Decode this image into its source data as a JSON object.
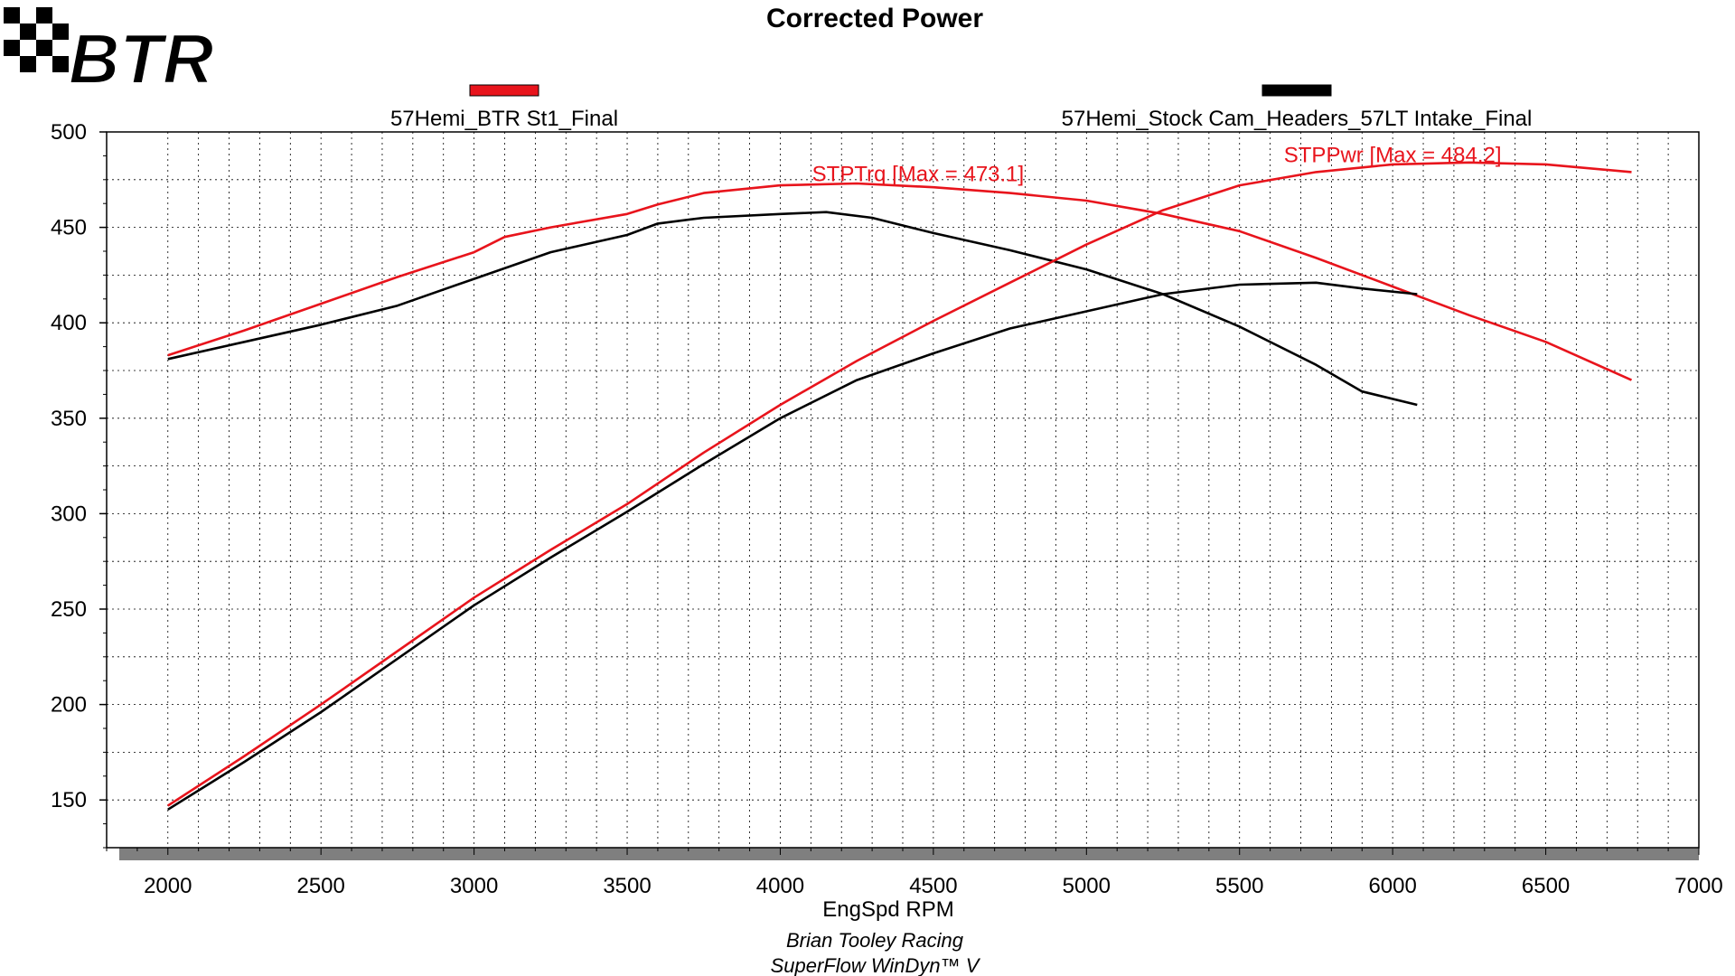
{
  "logo_text": "BTR",
  "colors": {
    "series_a": "#e8141c",
    "series_b": "#000000",
    "grid": "#000000",
    "shadow": "#7f7f7f"
  },
  "chart_data": {
    "type": "line",
    "title": "Corrected Power",
    "xlabel": "EngSpd RPM",
    "ylabel": "",
    "xlim": [
      1800,
      7000
    ],
    "ylim": [
      125,
      500
    ],
    "x_ticks": [
      2000,
      2500,
      3000,
      3500,
      4000,
      4500,
      5000,
      5500,
      6000,
      6500,
      7000
    ],
    "y_ticks": [
      150,
      200,
      250,
      300,
      350,
      400,
      450,
      500
    ],
    "grid": true,
    "legend": [
      {
        "name": "57Hemi_BTR St1_Final",
        "color": "#e8141c"
      },
      {
        "name": "57Hemi_Stock Cam_Headers_57LT Intake_Final",
        "color": "#000000"
      }
    ],
    "annotations": [
      {
        "text": "STPTrq [Max = 473.1]",
        "color": "#e8141c",
        "x": 4450,
        "y": 478
      },
      {
        "text": "STPPwr [Max = 484.2]",
        "color": "#e8141c",
        "x": 6000,
        "y": 488
      }
    ],
    "series": [
      {
        "name": "57Hemi_BTR St1_Final",
        "color": "#e8141c",
        "x": [
          2000,
          2250,
          2500,
          2750,
          3000,
          3100,
          3250,
          3500,
          3600,
          3750,
          4000,
          4250,
          4500,
          4750,
          5000,
          5250,
          5500,
          5750,
          6000,
          6250,
          6500,
          6780
        ],
        "values": [
          383,
          396,
          410,
          424,
          437,
          445,
          450,
          457,
          462,
          468,
          472,
          473,
          471,
          468,
          464,
          457,
          448,
          434,
          419,
          404,
          390,
          370
        ]
      },
      {
        "name": "57Hemi_Stock Cam_Headers_57LT Intake_Final",
        "color": "#000000",
        "x": [
          2000,
          2250,
          2500,
          2750,
          3000,
          3250,
          3500,
          3600,
          3750,
          4000,
          4150,
          4300,
          4500,
          4750,
          5000,
          5250,
          5500,
          5750,
          5900,
          6080
        ],
        "values": [
          381,
          390,
          399,
          409,
          423,
          437,
          446,
          452,
          455,
          457,
          458,
          455,
          447,
          438,
          428,
          415,
          398,
          378,
          364,
          357
        ]
      },
      {
        "name": "57Hemi_BTR St1_Final",
        "color": "#e8141c",
        "x": [
          2000,
          2250,
          2500,
          2750,
          3000,
          3250,
          3500,
          3750,
          4000,
          4250,
          4500,
          4750,
          5000,
          5250,
          5500,
          5750,
          6000,
          6250,
          6500,
          6780
        ],
        "values": [
          147,
          173,
          200,
          228,
          256,
          281,
          305,
          332,
          357,
          380,
          401,
          421,
          441,
          459,
          472,
          479,
          483,
          484,
          483,
          479
        ]
      },
      {
        "name": "57Hemi_Stock Cam_Headers_57LT Intake_Final",
        "color": "#000000",
        "x": [
          2000,
          2250,
          2500,
          2750,
          3000,
          3250,
          3500,
          3750,
          4000,
          4250,
          4500,
          4750,
          5000,
          5250,
          5500,
          5750,
          5900,
          6080
        ],
        "values": [
          145,
          170,
          196,
          224,
          252,
          277,
          301,
          326,
          350,
          370,
          384,
          397,
          406,
          415,
          420,
          421,
          418,
          415
        ]
      }
    ]
  },
  "footer": {
    "line1": "Brian Tooley Racing",
    "line2": "SuperFlow WinDyn™ V"
  }
}
